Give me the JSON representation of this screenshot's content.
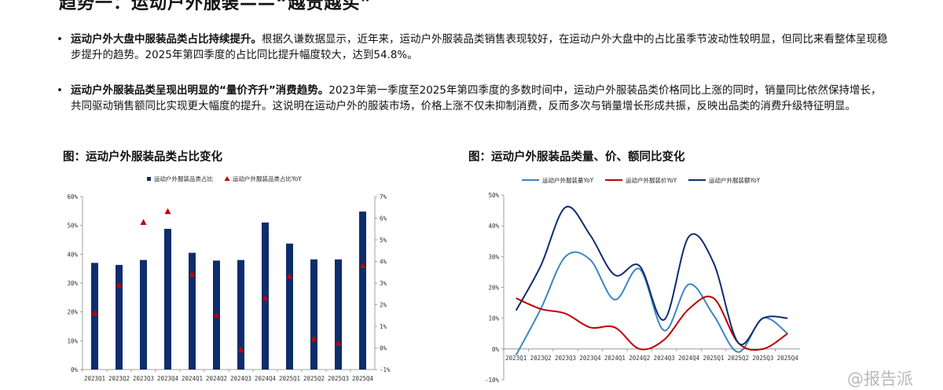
{
  "page": {
    "title": "趋势一：运动户外服装——“越贵越买”",
    "bullets": [
      {
        "bold": "运动户外大盘中服装品类占比持续提升。",
        "text": "根据久谦数据显示，近年来，运动户外服装品类销售表现较好，在运动户外大盘中的占比虽季节波动性较明显，但同比来看整体呈现稳步提升的趋势。2025年第四季度的占比同比提升幅度较大，达到54.8%。"
      },
      {
        "bold": "运动户外服装品类呈现出明显的“量价齐升”消费趋势。",
        "text": "2023年第一季度至2025年第四季度的多数时间中，运动户外服装品类价格同比上涨的同时，销量同比依然保持增长，共同驱动销售额同比实现更大幅度的提升。这说明在运动户外的服装市场，价格上涨不仅未抑制消费，反而多次与销量增长形成共振，反映出品类的消费升级特征明显。"
      }
    ],
    "watermark": "@报告派",
    "colors": {
      "bar": "#0d2d6c",
      "marker": "#c00000",
      "line_volume": "#3c86c4",
      "line_price": "#c00000",
      "line_amount": "#0d2d6c"
    }
  },
  "chart_data": [
    {
      "type": "bar",
      "title": "图：运动户外服装品类占比变化",
      "categories": [
        "2023Q1",
        "2023Q2",
        "2023Q3",
        "2023Q4",
        "2024Q1",
        "2024Q2",
        "2024Q3",
        "2024Q4",
        "2025Q1",
        "2025Q2",
        "2025Q3",
        "2025Q4"
      ],
      "series": [
        {
          "name": "运动户外服装品类占比",
          "axis": "left",
          "values": [
            37.0,
            36.3,
            38.0,
            48.8,
            40.5,
            37.8,
            38.0,
            51.0,
            43.7,
            38.2,
            38.2,
            54.8
          ]
        },
        {
          "name": "运动户外服装品类占比YoY",
          "axis": "right",
          "marker": "triangle",
          "values": [
            1.6,
            2.9,
            5.8,
            6.3,
            3.4,
            1.5,
            -0.1,
            2.3,
            3.3,
            0.4,
            0.2,
            3.8
          ]
        }
      ],
      "y_left": {
        "min": 0,
        "max": 60,
        "step": 10,
        "unit": "%"
      },
      "y_right": {
        "min": -1,
        "max": 7,
        "step": 1,
        "unit": "%"
      },
      "legend": "top"
    },
    {
      "type": "line",
      "title": "图：运动户外服装品类量、价、额同比变化",
      "categories": [
        "2023Q1",
        "2023Q2",
        "2023Q3",
        "2023Q4",
        "2024Q1",
        "2024Q2",
        "2024Q3",
        "2024Q4",
        "2025Q1",
        "2025Q2",
        "2025Q3",
        "2025Q4"
      ],
      "series": [
        {
          "name": "运动户外服装量YoY",
          "values": [
            -2,
            13,
            30,
            29,
            16,
            26,
            6,
            21,
            11,
            -1,
            10,
            5
          ]
        },
        {
          "name": "运动户外服装价YoY",
          "values": [
            16.5,
            13,
            11.5,
            7,
            7,
            0,
            3,
            13,
            16.5,
            2,
            0,
            5
          ]
        },
        {
          "name": "运动户外服装额YoY",
          "values": [
            12.5,
            27,
            46,
            37,
            24,
            27,
            9.5,
            36.5,
            28,
            2,
            10,
            10
          ]
        }
      ],
      "y": {
        "min": -10,
        "max": 50,
        "step": 10,
        "unit": "%"
      },
      "legend": "top",
      "smooth": true
    }
  ]
}
